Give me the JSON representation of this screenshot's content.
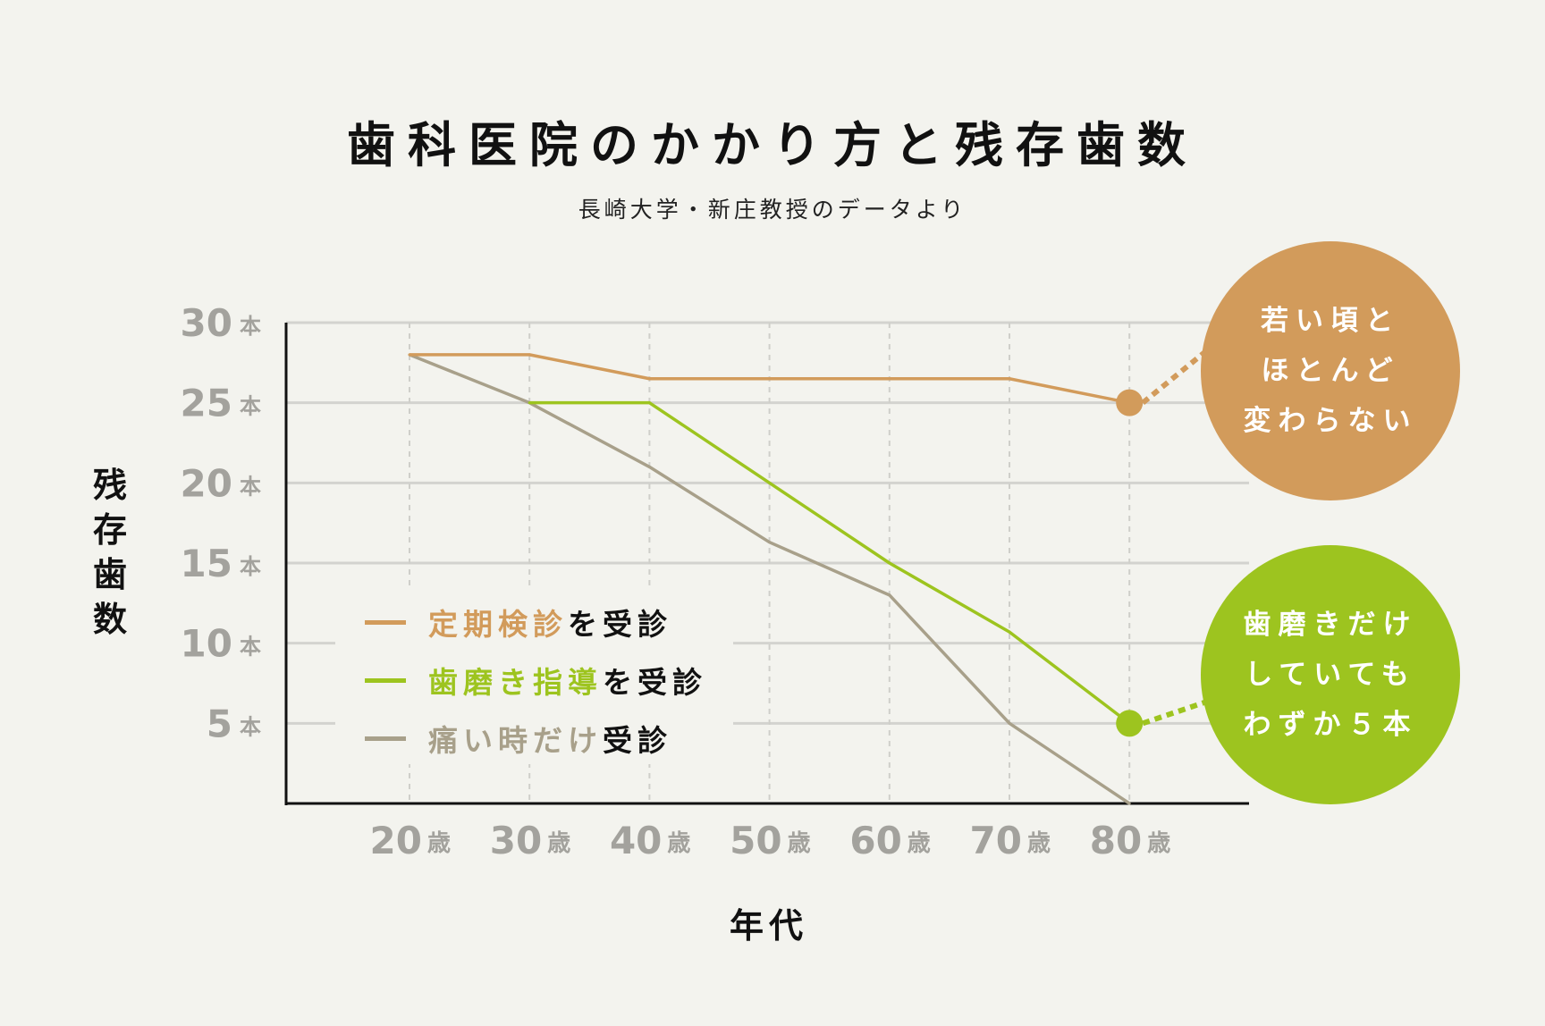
{
  "chart_data": {
    "type": "line",
    "title": "歯科医院のかかり方と残存歯数",
    "subtitle": "長崎大学・新庄教授のデータより",
    "xlabel": "年代",
    "ylabel": "残存歯数",
    "categories": [
      "20",
      "30",
      "40",
      "50",
      "60",
      "70",
      "80"
    ],
    "x_unit": "歳",
    "y_unit": "本",
    "yticks": [
      5,
      10,
      15,
      20,
      25,
      30
    ],
    "ylim": [
      0,
      30
    ],
    "grid": true,
    "series": [
      {
        "name": "定期検診",
        "name_suffix": "を受診",
        "color": "#d29b5b",
        "values": [
          28,
          28,
          26.5,
          26.5,
          26.5,
          26.5,
          25
        ]
      },
      {
        "name": "歯磨き指導",
        "name_suffix": "を受診",
        "color": "#9dc41f",
        "values": [
          null,
          25,
          25,
          20,
          15,
          10.7,
          5
        ]
      },
      {
        "name": "痛い時だけ",
        "name_suffix": "受診",
        "color": "#a8a08a",
        "values": [
          28,
          25,
          21,
          16.3,
          13,
          5,
          0
        ]
      }
    ],
    "legend_position": "bottom-left",
    "annotations": [
      {
        "series": 0,
        "lines": [
          "若い頃と",
          "ほとんど",
          "変わらない"
        ],
        "color": "#d29b5b"
      },
      {
        "series": 1,
        "lines": [
          "歯磨きだけ",
          "していても",
          "わずか５本"
        ],
        "color": "#9dc41f"
      }
    ]
  }
}
